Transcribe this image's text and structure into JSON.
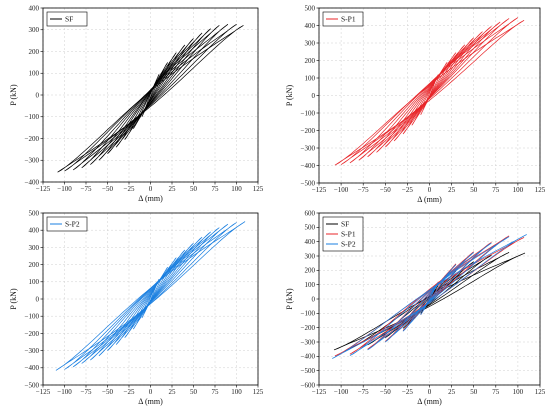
{
  "chart_data": [
    {
      "type": "line",
      "xlabel": "Δ (mm)",
      "ylabel": "P (kN)",
      "xlim": [
        -125,
        125
      ],
      "ylim": [
        -400,
        400
      ],
      "xticks": [
        -125,
        -100,
        -75,
        -50,
        -25,
        0,
        25,
        50,
        75,
        100,
        125
      ],
      "yticks": [
        -400,
        -300,
        -200,
        -100,
        0,
        100,
        200,
        300,
        400
      ],
      "legend_position": "top-left",
      "grid": true,
      "series": [
        {
          "name": "SF",
          "color": "#000000",
          "loops": [
            {
              "d": 10,
              "pp": 95,
              "pn": -100
            },
            {
              "d": 20,
              "pp": 150,
              "pn": -155
            },
            {
              "d": 30,
              "pp": 195,
              "pn": -205
            },
            {
              "d": 40,
              "pp": 230,
              "pn": -240
            },
            {
              "d": 50,
              "pp": 260,
              "pn": -270
            },
            {
              "d": 60,
              "pp": 285,
              "pn": -300
            },
            {
              "d": 70,
              "pp": 305,
              "pn": -320
            },
            {
              "d": 80,
              "pp": 320,
              "pn": -335
            },
            {
              "d": 90,
              "pp": 325,
              "pn": -345
            },
            {
              "d": 100,
              "pp": 325,
              "pn": -350
            },
            {
              "d": 108,
              "pp": 320,
              "pn": -355
            }
          ]
        }
      ]
    },
    {
      "type": "line",
      "xlabel": "Δ (mm)",
      "ylabel": "P (kN)",
      "xlim": [
        -125,
        125
      ],
      "ylim": [
        -500,
        500
      ],
      "xticks": [
        -125,
        -100,
        -75,
        -50,
        -25,
        0,
        25,
        50,
        75,
        100,
        125
      ],
      "yticks": [
        -500,
        -400,
        -300,
        -200,
        -100,
        0,
        100,
        200,
        300,
        400,
        500
      ],
      "legend_position": "top-left",
      "grid": true,
      "series": [
        {
          "name": "S-P1",
          "color": "#e8262a",
          "loops": [
            {
              "d": 10,
              "pp": 120,
              "pn": -110
            },
            {
              "d": 20,
              "pp": 190,
              "pn": -170
            },
            {
              "d": 30,
              "pp": 245,
              "pn": -220
            },
            {
              "d": 40,
              "pp": 290,
              "pn": -260
            },
            {
              "d": 50,
              "pp": 330,
              "pn": -295
            },
            {
              "d": 60,
              "pp": 365,
              "pn": -325
            },
            {
              "d": 70,
              "pp": 395,
              "pn": -350
            },
            {
              "d": 80,
              "pp": 420,
              "pn": -370
            },
            {
              "d": 90,
              "pp": 440,
              "pn": -385
            },
            {
              "d": 100,
              "pp": 445,
              "pn": -395
            },
            {
              "d": 107,
              "pp": 430,
              "pn": -398
            }
          ]
        }
      ]
    },
    {
      "type": "line",
      "xlabel": "Δ (mm)",
      "ylabel": "P (kN)",
      "xlim": [
        -125,
        125
      ],
      "ylim": [
        -500,
        500
      ],
      "xticks": [
        -125,
        -100,
        -75,
        -50,
        -25,
        0,
        25,
        50,
        75,
        100,
        125
      ],
      "yticks": [
        -500,
        -400,
        -300,
        -200,
        -100,
        0,
        100,
        200,
        300,
        400,
        500
      ],
      "legend_position": "top-left",
      "grid": true,
      "series": [
        {
          "name": "S-P2",
          "color": "#1a7fe0",
          "loops": [
            {
              "d": 10,
              "pp": 115,
              "pn": -110
            },
            {
              "d": 20,
              "pp": 185,
              "pn": -175
            },
            {
              "d": 30,
              "pp": 240,
              "pn": -225
            },
            {
              "d": 40,
              "pp": 285,
              "pn": -265
            },
            {
              "d": 50,
              "pp": 325,
              "pn": -300
            },
            {
              "d": 60,
              "pp": 360,
              "pn": -330
            },
            {
              "d": 70,
              "pp": 390,
              "pn": -355
            },
            {
              "d": 80,
              "pp": 415,
              "pn": -375
            },
            {
              "d": 90,
              "pp": 435,
              "pn": -395
            },
            {
              "d": 100,
              "pp": 445,
              "pn": -410
            },
            {
              "d": 110,
              "pp": 450,
              "pn": -415
            }
          ]
        }
      ]
    },
    {
      "type": "line",
      "xlabel": "Δ (mm)",
      "ylabel": "P (kN)",
      "xlim": [
        -125,
        125
      ],
      "ylim": [
        -600,
        600
      ],
      "xticks": [
        -125,
        -100,
        -75,
        -50,
        -25,
        0,
        25,
        50,
        75,
        100,
        125
      ],
      "yticks": [
        -600,
        -500,
        -400,
        -300,
        -200,
        -100,
        0,
        100,
        200,
        300,
        400,
        500,
        600
      ],
      "legend_position": "top-left",
      "grid": true,
      "series": [
        {
          "name": "SF",
          "color": "#000000",
          "loops": [
            {
              "d": 10,
              "pp": 95,
              "pn": -100
            },
            {
              "d": 30,
              "pp": 195,
              "pn": -205
            },
            {
              "d": 50,
              "pp": 260,
              "pn": -270
            },
            {
              "d": 70,
              "pp": 305,
              "pn": -320
            },
            {
              "d": 90,
              "pp": 325,
              "pn": -345
            },
            {
              "d": 108,
              "pp": 320,
              "pn": -355
            }
          ]
        },
        {
          "name": "S-P1",
          "color": "#e8262a",
          "loops": [
            {
              "d": 10,
              "pp": 120,
              "pn": -110
            },
            {
              "d": 30,
              "pp": 245,
              "pn": -220
            },
            {
              "d": 50,
              "pp": 330,
              "pn": -295
            },
            {
              "d": 70,
              "pp": 395,
              "pn": -350
            },
            {
              "d": 90,
              "pp": 440,
              "pn": -385
            },
            {
              "d": 107,
              "pp": 430,
              "pn": -398
            }
          ]
        },
        {
          "name": "S-P2",
          "color": "#1a7fe0",
          "loops": [
            {
              "d": 10,
              "pp": 115,
              "pn": -110
            },
            {
              "d": 30,
              "pp": 240,
              "pn": -225
            },
            {
              "d": 50,
              "pp": 325,
              "pn": -300
            },
            {
              "d": 70,
              "pp": 390,
              "pn": -355
            },
            {
              "d": 90,
              "pp": 435,
              "pn": -395
            },
            {
              "d": 110,
              "pp": 450,
              "pn": -415
            }
          ]
        }
      ]
    }
  ]
}
